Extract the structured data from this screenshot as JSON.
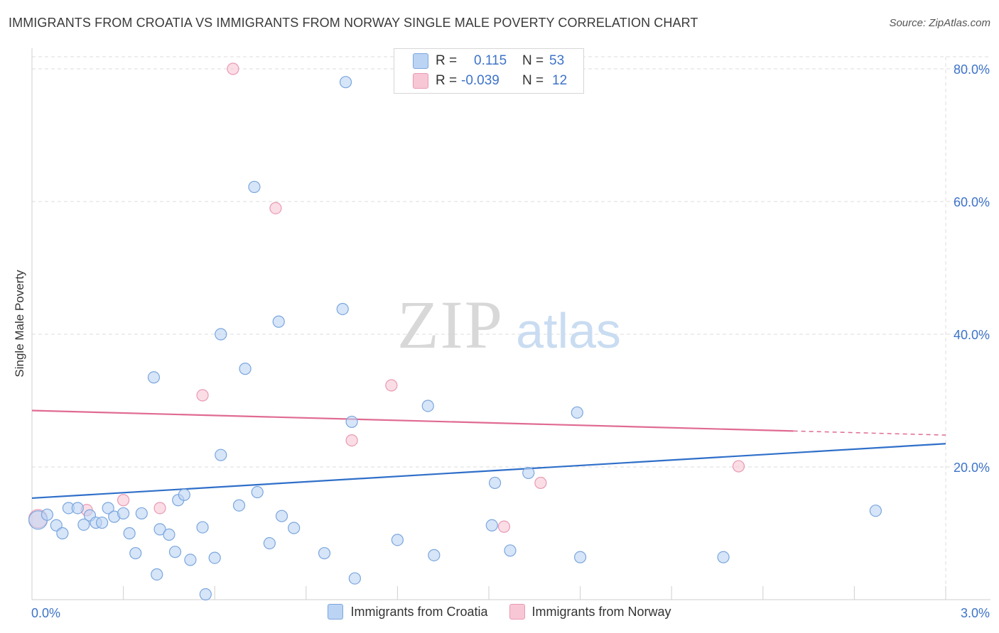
{
  "title": "IMMIGRANTS FROM CROATIA VS IMMIGRANTS FROM NORWAY SINGLE MALE POVERTY CORRELATION CHART",
  "source": "Source: ZipAtlas.com",
  "watermark": {
    "zip": "ZIP",
    "atlas": "atlas"
  },
  "stats": {
    "croatia": {
      "r_label": "R =",
      "r_value": "0.115",
      "n_label": "N =",
      "n_value": "53"
    },
    "norway": {
      "r_label": "R =",
      "r_value": "-0.039",
      "n_label": "N =",
      "n_value": "12"
    }
  },
  "legend": {
    "croatia": "Immigrants from Croatia",
    "norway": "Immigrants from Norway"
  },
  "colors": {
    "croatia_fill": "#bcd4f4",
    "croatia_stroke": "#7aa6de",
    "croatia_line": "#2f6fc9",
    "norway_fill": "#f8c7d6",
    "norway_stroke": "#e89ab3",
    "norway_line": "#e06b92",
    "tick_label": "#3d73c9",
    "grid": "#dcdcdc"
  },
  "chart_data": {
    "type": "scatter",
    "title": "IMMIGRANTS FROM CROATIA VS IMMIGRANTS FROM NORWAY SINGLE MALE POVERTY CORRELATION CHART",
    "xlabel": "",
    "ylabel": "Single Male Poverty",
    "xlim": [
      0,
      3.0
    ],
    "ylim": [
      0,
      80
    ],
    "x_tick_labels": [
      "0.0%",
      "3.0%"
    ],
    "y_ticks": [
      20,
      40,
      60,
      80
    ],
    "y_tick_labels": [
      "20.0%",
      "40.0%",
      "60.0%",
      "80.0%"
    ],
    "grid": true,
    "legend_position": "bottom",
    "series": [
      {
        "name": "Immigrants from Croatia",
        "points": [
          [
            0.02,
            12.0
          ],
          [
            0.05,
            12.8
          ],
          [
            0.08,
            11.2
          ],
          [
            0.1,
            10.0
          ],
          [
            0.12,
            13.8
          ],
          [
            0.15,
            13.8
          ],
          [
            0.17,
            11.3
          ],
          [
            0.19,
            12.7
          ],
          [
            0.21,
            11.6
          ],
          [
            0.23,
            11.6
          ],
          [
            0.25,
            13.8
          ],
          [
            0.27,
            12.5
          ],
          [
            0.3,
            13.0
          ],
          [
            0.32,
            10.0
          ],
          [
            0.34,
            7.0
          ],
          [
            0.36,
            13.0
          ],
          [
            0.42,
            10.6
          ],
          [
            0.45,
            9.8
          ],
          [
            0.47,
            7.2
          ],
          [
            0.48,
            15.0
          ],
          [
            0.5,
            15.8
          ],
          [
            0.52,
            6.0
          ],
          [
            0.56,
            10.9
          ],
          [
            0.6,
            6.3
          ],
          [
            0.62,
            21.8
          ],
          [
            0.68,
            14.2
          ],
          [
            0.74,
            16.2
          ],
          [
            0.78,
            8.5
          ],
          [
            0.82,
            12.6
          ],
          [
            0.86,
            10.8
          ],
          [
            0.96,
            7.0
          ],
          [
            1.06,
            3.2
          ],
          [
            1.2,
            9.0
          ],
          [
            1.32,
            6.7
          ],
          [
            1.51,
            11.2
          ],
          [
            1.57,
            7.4
          ],
          [
            1.63,
            19.1
          ],
          [
            1.52,
            17.6
          ],
          [
            1.8,
            6.4
          ],
          [
            2.77,
            13.4
          ],
          [
            0.4,
            33.5
          ],
          [
            0.41,
            3.8
          ],
          [
            0.62,
            40.0
          ],
          [
            0.7,
            34.8
          ],
          [
            0.81,
            41.9
          ],
          [
            1.05,
            26.8
          ],
          [
            1.02,
            43.8
          ],
          [
            1.3,
            29.2
          ],
          [
            1.79,
            28.2
          ],
          [
            0.73,
            62.2
          ],
          [
            1.03,
            78.0
          ],
          [
            2.27,
            6.4
          ],
          [
            0.57,
            0.8
          ]
        ],
        "trend": {
          "x": [
            0.0,
            3.0
          ],
          "y": [
            15.3,
            23.5
          ]
        }
      },
      {
        "name": "Immigrants from Norway",
        "points": [
          [
            0.02,
            12.2
          ],
          [
            0.18,
            13.5
          ],
          [
            0.3,
            15.0
          ],
          [
            0.42,
            13.8
          ],
          [
            0.56,
            30.8
          ],
          [
            0.66,
            80.0
          ],
          [
            0.8,
            59.0
          ],
          [
            1.05,
            24.0
          ],
          [
            1.18,
            32.3
          ],
          [
            1.55,
            11.0
          ],
          [
            1.67,
            17.6
          ],
          [
            2.32,
            20.1
          ]
        ],
        "trend": {
          "x": [
            0.0,
            3.0
          ],
          "y": [
            28.5,
            24.8
          ],
          "solid_until_x": 2.5
        }
      }
    ]
  }
}
